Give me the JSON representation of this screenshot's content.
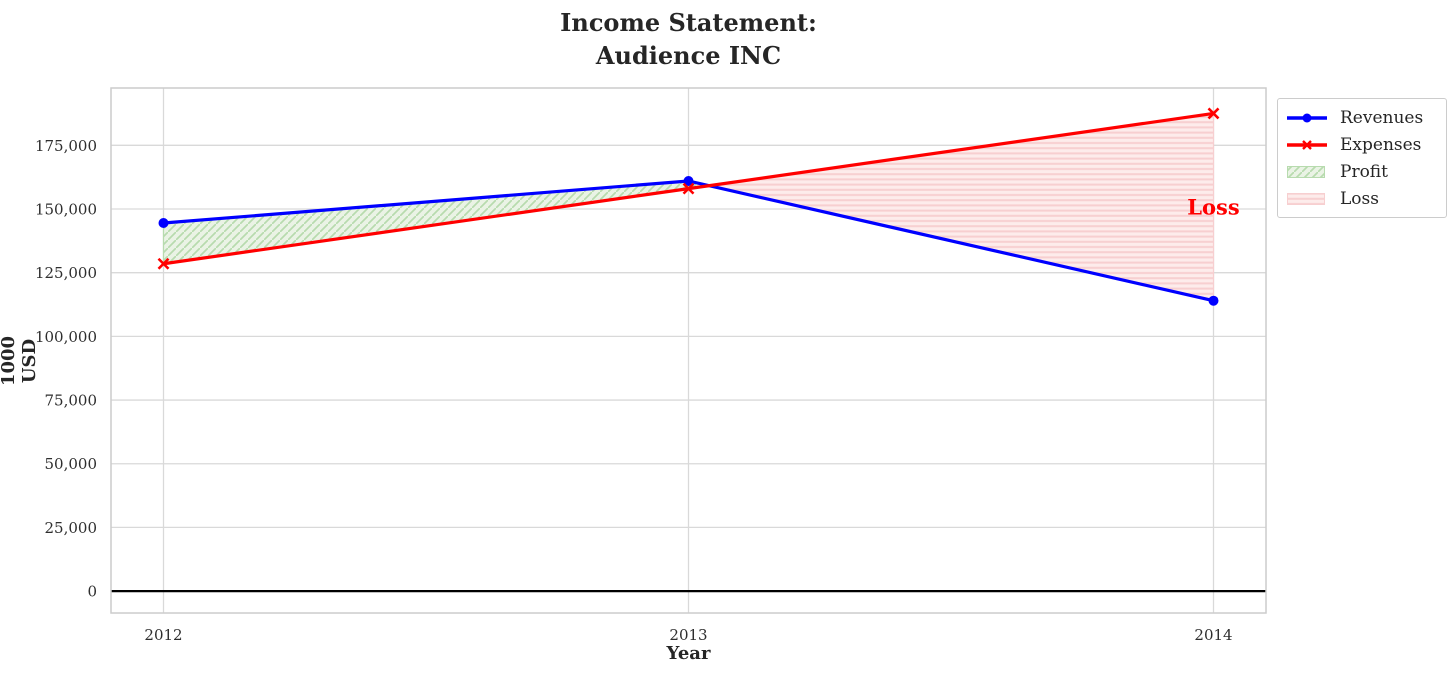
{
  "chart_data": {
    "type": "line",
    "title": "Income Statement:\nAudience INC",
    "title_lines": [
      "Income Statement:",
      "Audience INC"
    ],
    "xlabel": "Year",
    "ylabel": "1000 USD",
    "x": [
      2012,
      2013,
      2014
    ],
    "x_tick_labels": [
      "2012",
      "2013",
      "2014"
    ],
    "y_ticks": [
      0,
      25000,
      50000,
      75000,
      100000,
      125000,
      150000,
      175000
    ],
    "y_tick_labels": [
      "0",
      "25,000",
      "50,000",
      "75,000",
      "100,000",
      "125,000",
      "150,000",
      "175,000"
    ],
    "xlim": [
      2011.9,
      2014.1
    ],
    "ylim": [
      -8600,
      197500
    ],
    "grid": true,
    "zero_line": true,
    "series": [
      {
        "name": "Revenues",
        "values": [
          144500,
          161000,
          114000
        ],
        "color": "#0000FF",
        "marker": "circle"
      },
      {
        "name": "Expenses",
        "values": [
          128500,
          158000,
          187500
        ],
        "color": "#FF0000",
        "marker": "x"
      }
    ],
    "fills": [
      {
        "name": "Profit",
        "between": "revenues>expenses",
        "fill": "#eaf3e5",
        "hatch": "diagonal",
        "hatch_color": "#b7dbae"
      },
      {
        "name": "Loss",
        "between": "expenses>revenues",
        "fill": "#fdeceb",
        "hatch": "horizontal",
        "hatch_color": "#f7cfd0"
      }
    ],
    "annotations": [
      {
        "text": "Loss",
        "x": 2014,
        "y": 150500,
        "color": "#FF0000",
        "bold": true
      }
    ],
    "legend": {
      "position": "upper-right-outside",
      "entries": [
        "Revenues",
        "Expenses",
        "Profit",
        "Loss"
      ]
    },
    "colors": {
      "grid": "#d9d9d9",
      "spine": "#cccccc",
      "tick_text": "#2e2e2e",
      "title_text": "#262626",
      "zero_line": "#000000"
    }
  }
}
